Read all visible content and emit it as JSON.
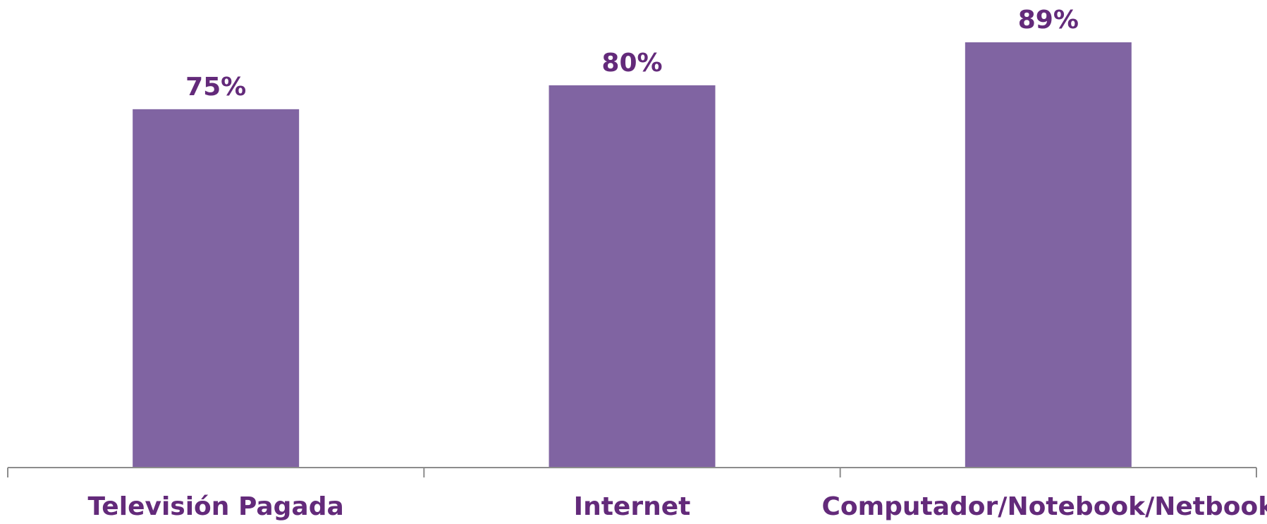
{
  "chart_data": {
    "type": "bar",
    "categories": [
      "Televisión Pagada",
      "Internet",
      "Computador/Notebook/Netbook"
    ],
    "values": [
      75,
      80,
      89
    ],
    "data_labels": [
      "75%",
      "80%",
      "89%"
    ],
    "unit": "%",
    "ylim": [
      0,
      89
    ],
    "grid": false,
    "legend": "none",
    "colors": {
      "bar": "#8064a2",
      "label_text": "#632a7a",
      "axis": "#8c8c8c"
    }
  }
}
